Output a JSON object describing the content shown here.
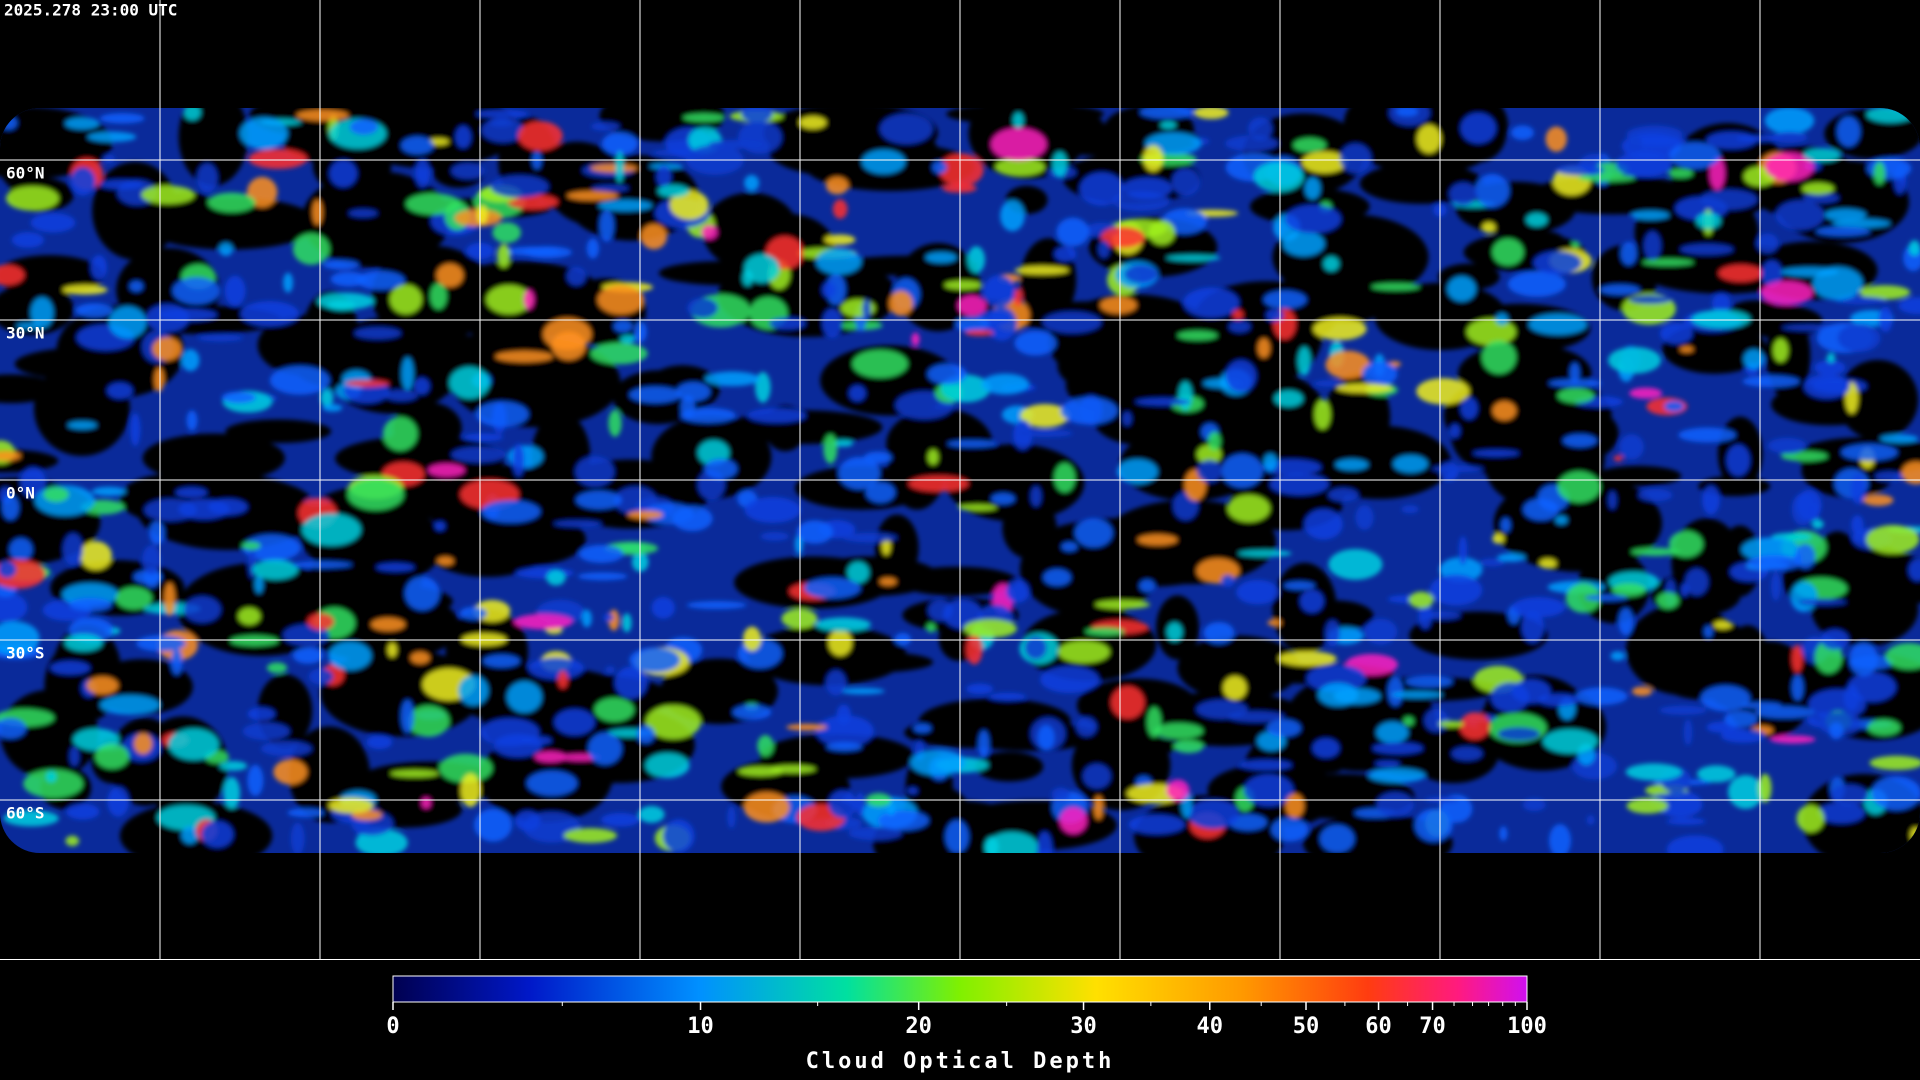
{
  "header": {
    "timestamp": "2025.278 23:00 UTC"
  },
  "map": {
    "lat_lines": [
      {
        "value": 60,
        "label": "60°N"
      },
      {
        "value": 30,
        "label": "30°N"
      },
      {
        "value": 0,
        "label": "0°N"
      },
      {
        "value": -30,
        "label": "30°S"
      },
      {
        "value": -60,
        "label": "60°S"
      }
    ],
    "lon_lines": [
      -150,
      -120,
      -90,
      -60,
      -30,
      0,
      30,
      60,
      90,
      120,
      150
    ]
  },
  "colorbar": {
    "title": "Cloud Optical Depth",
    "lim": [
      0,
      100
    ],
    "ticks": [
      0,
      10,
      20,
      30,
      40,
      50,
      60,
      70,
      100
    ],
    "minor_ticks": [
      5,
      15,
      25,
      35,
      45,
      55,
      65,
      75,
      80,
      85,
      90,
      95
    ]
  }
}
